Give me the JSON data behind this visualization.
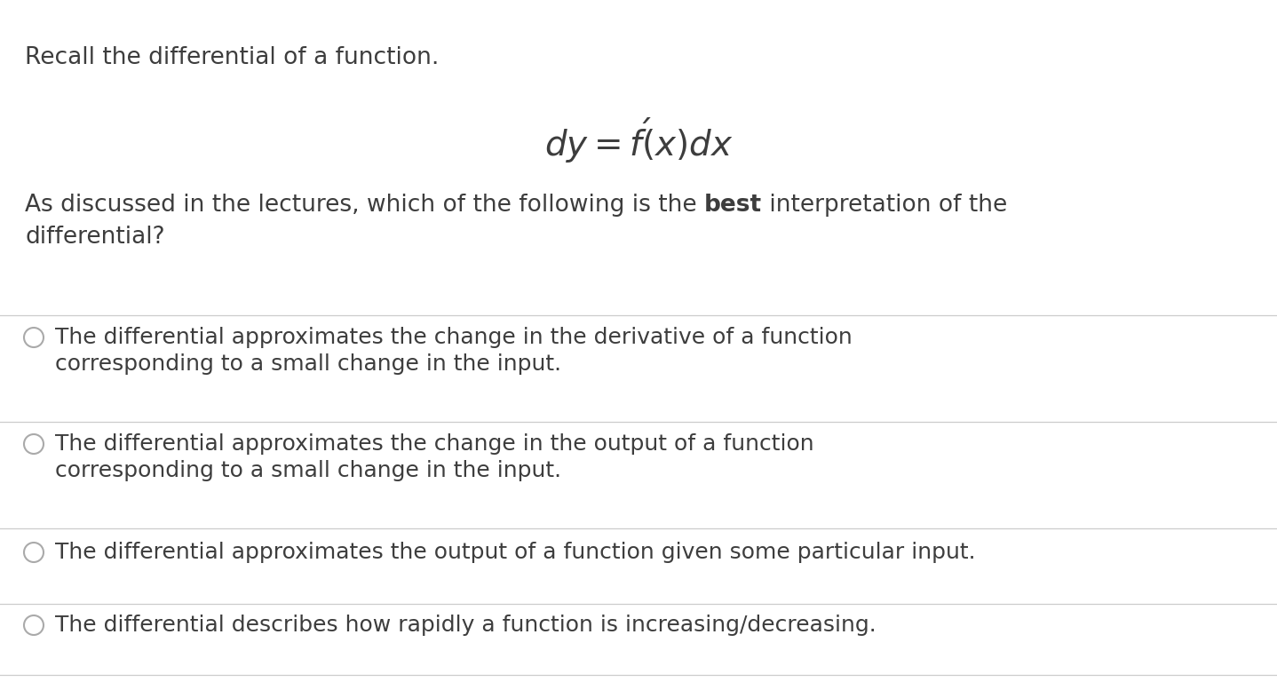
{
  "background_color": "#ffffff",
  "text_color": "#3d3d3d",
  "line_color": "#cccccc",
  "title_line1": "Recall the differential of a function.",
  "formula": "$dy = f'(x)dx$",
  "options": [
    {
      "line1": "The differential approximates the change in the derivative of a function",
      "line2": "corresponding to a small change in the input."
    },
    {
      "line1": "The differential approximates the change in the output of a function",
      "line2": "corresponding to a small change in the input."
    },
    {
      "line1": "The differential approximates the output of a function given some particular input.",
      "line2": ""
    },
    {
      "line1": "The differential describes how rapidly a function is increasing/decreasing.",
      "line2": ""
    }
  ],
  "figsize": [
    14.38,
    7.86
  ],
  "dpi": 100
}
